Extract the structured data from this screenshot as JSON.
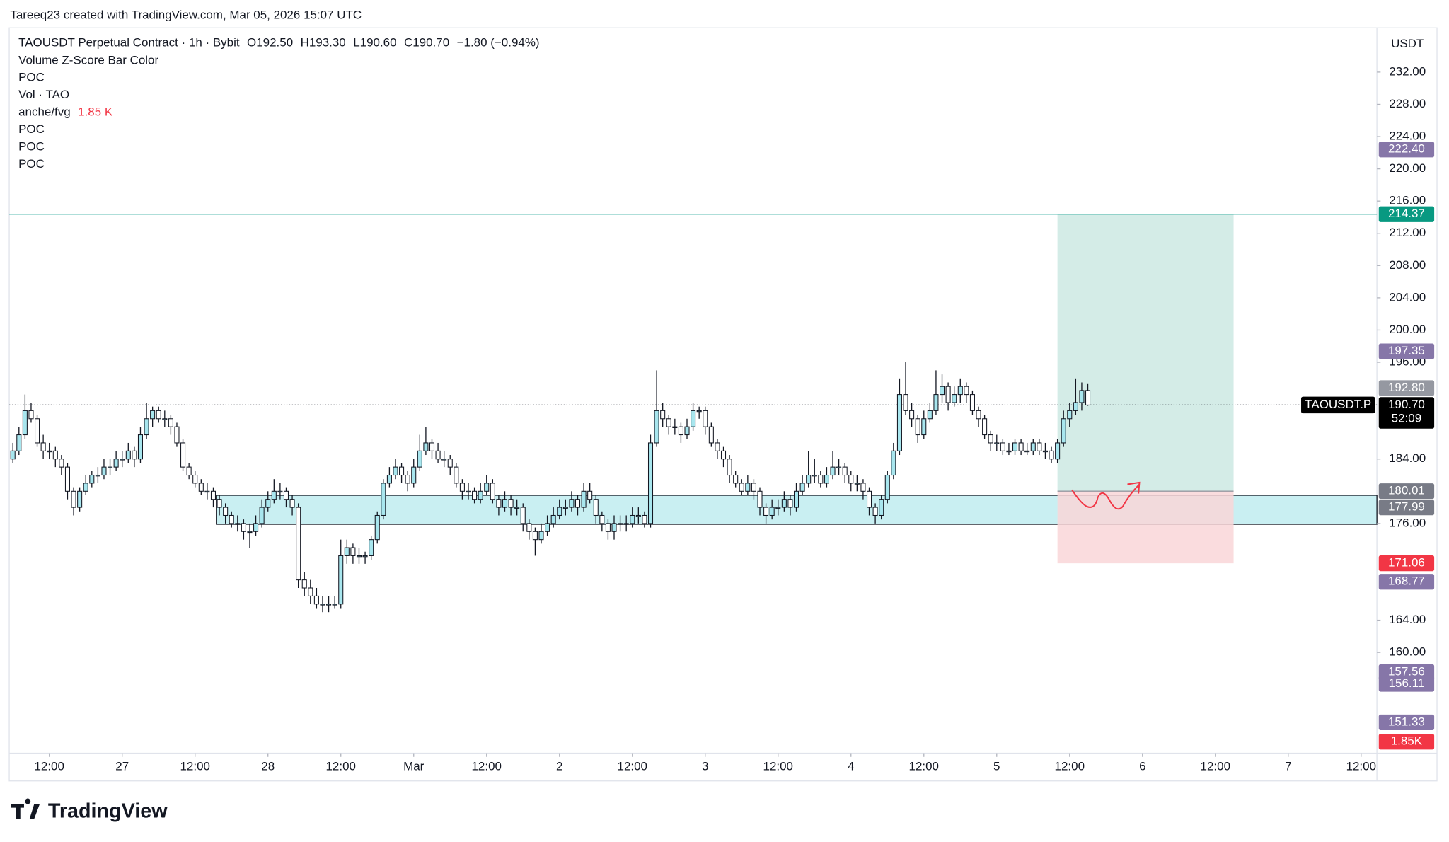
{
  "header": "Tareeq23 created with TradingView.com, Mar 05, 2026 15:07 UTC",
  "footer_logo": "TradingView",
  "chart_data": {
    "type": "candlestick",
    "legend": {
      "symbol": "TAOUSDT Perpetual Contract · 1h · Bybit",
      "ohlc_text": [
        "O192.50",
        "H193.30",
        "L190.60",
        "C190.70"
      ],
      "change": "−1.80 (−0.94%)",
      "indicators": [
        "Volume Z-Score Bar Color",
        "POC",
        "Vol · TAO",
        "anche/fvg",
        "POC",
        "POC",
        "POC"
      ],
      "volume_value": "1.85 K"
    },
    "currency": "USDT",
    "ohlc": [
      [
        184,
        186,
        183.5,
        185
      ],
      [
        185,
        188,
        184.5,
        187
      ],
      [
        187,
        192,
        186.5,
        190
      ],
      [
        190,
        191,
        188.5,
        189
      ],
      [
        189,
        189.5,
        185.5,
        186
      ],
      [
        186,
        187,
        184,
        185
      ],
      [
        185,
        186,
        184,
        185
      ],
      [
        185,
        185.5,
        183,
        184
      ],
      [
        184,
        184.5,
        182,
        183
      ],
      [
        183,
        183.5,
        179,
        180
      ],
      [
        180,
        180.5,
        177,
        178
      ],
      [
        178,
        180.5,
        177.5,
        180
      ],
      [
        180,
        182,
        179.5,
        181
      ],
      [
        181,
        182.5,
        180.5,
        182
      ],
      [
        182,
        183,
        181,
        182
      ],
      [
        182,
        184,
        181.5,
        183
      ],
      [
        183,
        184,
        182,
        183
      ],
      [
        183,
        185,
        182.5,
        184
      ],
      [
        184,
        185,
        183,
        184
      ],
      [
        184,
        186,
        183.5,
        185
      ],
      [
        185,
        185.5,
        183,
        184
      ],
      [
        184,
        188,
        183.5,
        187
      ],
      [
        187,
        191,
        186.5,
        189
      ],
      [
        189,
        190.5,
        188,
        190
      ],
      [
        190,
        190.5,
        188.5,
        189
      ],
      [
        189,
        190,
        188,
        189
      ],
      [
        189,
        189.5,
        187,
        188
      ],
      [
        188,
        188.5,
        185.5,
        186
      ],
      [
        186,
        186.5,
        182.5,
        183
      ],
      [
        183,
        183.5,
        181.5,
        182
      ],
      [
        182,
        182.5,
        180.5,
        181
      ],
      [
        181,
        181.5,
        179.5,
        180
      ],
      [
        180,
        181,
        179,
        180
      ],
      [
        180,
        180.5,
        178,
        179
      ],
      [
        179,
        179.5,
        177,
        178
      ],
      [
        178,
        178.5,
        176,
        177
      ],
      [
        177,
        177.5,
        175.5,
        176
      ],
      [
        176,
        177,
        175,
        176
      ],
      [
        176,
        176.5,
        174,
        175
      ],
      [
        175,
        176,
        173,
        175
      ],
      [
        175,
        177,
        174.5,
        176
      ],
      [
        176,
        179,
        175.5,
        178
      ],
      [
        178,
        180,
        177.5,
        179
      ],
      [
        179,
        181.5,
        178.5,
        180
      ],
      [
        180,
        181,
        179,
        180
      ],
      [
        180,
        180.5,
        178,
        179
      ],
      [
        179,
        179.5,
        177,
        178
      ],
      [
        178,
        178.5,
        168,
        169
      ],
      [
        169,
        170,
        167,
        168
      ],
      [
        168,
        169,
        166,
        167
      ],
      [
        167,
        168,
        165.5,
        166
      ],
      [
        166,
        167,
        165,
        166
      ],
      [
        166,
        167,
        165,
        166
      ],
      [
        166,
        167,
        165.5,
        166
      ],
      [
        166,
        174,
        165.5,
        172
      ],
      [
        172,
        174,
        171,
        173
      ],
      [
        173,
        173.5,
        171,
        172
      ],
      [
        172,
        173,
        171,
        172
      ],
      [
        172,
        172.5,
        171,
        172
      ],
      [
        172,
        174.5,
        171.5,
        174
      ],
      [
        174,
        177.5,
        173.5,
        177
      ],
      [
        177,
        181.5,
        176.5,
        181
      ],
      [
        181,
        183,
        180.5,
        182
      ],
      [
        182,
        184,
        181.5,
        183
      ],
      [
        183,
        183.5,
        181,
        182
      ],
      [
        182,
        182.5,
        180,
        181
      ],
      [
        181,
        184,
        180.5,
        183
      ],
      [
        183,
        187,
        182.5,
        185
      ],
      [
        185,
        188,
        184.5,
        186
      ],
      [
        186,
        186.5,
        184,
        185
      ],
      [
        185,
        186,
        183.5,
        184
      ],
      [
        184,
        185,
        183,
        184
      ],
      [
        184,
        184.5,
        182,
        183
      ],
      [
        183,
        183.5,
        180.5,
        181
      ],
      [
        181,
        181.5,
        179,
        180
      ],
      [
        180,
        181,
        179,
        180
      ],
      [
        180,
        180.5,
        178.5,
        179
      ],
      [
        179,
        181,
        178.5,
        180
      ],
      [
        180,
        182,
        179.5,
        181
      ],
      [
        181,
        181.5,
        178.5,
        179
      ],
      [
        179,
        179.5,
        177,
        178
      ],
      [
        178,
        180,
        177.5,
        179
      ],
      [
        179,
        179.5,
        177,
        178
      ],
      [
        178,
        179,
        177,
        178
      ],
      [
        178,
        178.5,
        175,
        176
      ],
      [
        176,
        176.5,
        174,
        175
      ],
      [
        175,
        175.5,
        172,
        174
      ],
      [
        174,
        176,
        173.5,
        175
      ],
      [
        175,
        177,
        174.5,
        176
      ],
      [
        176,
        178,
        175.5,
        177
      ],
      [
        177,
        179,
        176.5,
        178
      ],
      [
        178,
        179,
        177,
        178
      ],
      [
        178,
        180,
        177.5,
        179
      ],
      [
        179,
        179.5,
        177,
        178
      ],
      [
        178,
        181,
        177.5,
        180
      ],
      [
        180,
        181,
        178.5,
        179
      ],
      [
        179,
        179.5,
        176,
        177
      ],
      [
        177,
        177.5,
        175,
        176
      ],
      [
        176,
        176.5,
        174,
        175
      ],
      [
        175,
        177,
        174,
        176
      ],
      [
        176,
        177,
        175,
        176
      ],
      [
        176,
        177,
        175,
        176
      ],
      [
        176,
        178,
        175.5,
        177
      ],
      [
        177,
        178,
        176,
        177
      ],
      [
        177,
        177.5,
        175.5,
        176
      ],
      [
        176,
        187,
        175.5,
        186
      ],
      [
        186,
        195,
        185.5,
        190
      ],
      [
        190,
        191,
        188,
        189
      ],
      [
        189,
        189.5,
        187,
        188
      ],
      [
        188,
        189,
        187,
        188
      ],
      [
        188,
        188.5,
        186,
        187
      ],
      [
        187,
        189,
        186.5,
        188
      ],
      [
        188,
        191,
        187.5,
        190
      ],
      [
        190,
        190.5,
        189,
        190
      ],
      [
        190,
        190.5,
        187,
        188
      ],
      [
        188,
        188.5,
        185.5,
        186
      ],
      [
        186,
        186.5,
        184,
        185
      ],
      [
        185,
        185.5,
        183,
        184
      ],
      [
        184,
        184.5,
        181,
        182
      ],
      [
        182,
        182.5,
        180.5,
        181
      ],
      [
        181,
        181.5,
        179.5,
        180
      ],
      [
        180,
        182,
        179.5,
        181
      ],
      [
        181,
        181.5,
        179,
        180
      ],
      [
        180,
        180.5,
        177,
        178
      ],
      [
        178,
        178.5,
        176,
        177
      ],
      [
        177,
        179,
        176.5,
        178
      ],
      [
        178,
        179,
        177,
        178
      ],
      [
        178,
        180,
        177.5,
        179
      ],
      [
        179,
        179.5,
        177,
        178
      ],
      [
        178,
        181,
        177.5,
        180
      ],
      [
        180,
        182,
        179.5,
        181
      ],
      [
        181,
        185,
        180.5,
        182
      ],
      [
        182,
        184,
        181,
        182
      ],
      [
        182,
        182.5,
        180.5,
        181
      ],
      [
        181,
        183,
        180.5,
        182
      ],
      [
        182,
        185,
        181.5,
        183
      ],
      [
        183,
        184,
        182,
        183
      ],
      [
        183,
        183.5,
        181,
        182
      ],
      [
        182,
        182.5,
        180,
        181
      ],
      [
        181,
        182,
        180,
        181
      ],
      [
        181,
        181.5,
        179,
        180
      ],
      [
        180,
        180.5,
        177,
        178
      ],
      [
        178,
        178.5,
        176,
        177
      ],
      [
        177,
        179.5,
        176.5,
        179
      ],
      [
        179,
        182.5,
        178.5,
        182
      ],
      [
        182,
        186,
        181.5,
        185
      ],
      [
        185,
        194,
        184.5,
        192
      ],
      [
        192,
        196,
        189.5,
        190
      ],
      [
        190,
        191,
        188,
        189
      ],
      [
        189,
        189.5,
        186,
        187
      ],
      [
        187,
        190,
        186.5,
        189
      ],
      [
        189,
        191,
        188.5,
        190
      ],
      [
        190,
        195,
        189.5,
        192
      ],
      [
        192,
        194.5,
        191,
        193
      ],
      [
        193,
        193.5,
        190,
        191
      ],
      [
        191,
        193,
        190.5,
        192
      ],
      [
        192,
        194,
        191,
        193
      ],
      [
        193,
        193.5,
        191,
        192
      ],
      [
        192,
        192.5,
        189.5,
        190
      ],
      [
        190,
        190.5,
        188,
        189
      ],
      [
        189,
        189.5,
        186.5,
        187
      ],
      [
        187,
        187.5,
        185,
        186
      ],
      [
        186,
        187,
        185,
        186
      ],
      [
        186,
        186.5,
        184.5,
        185
      ],
      [
        185,
        186,
        184.5,
        185
      ],
      [
        185,
        186.5,
        184.5,
        186
      ],
      [
        186,
        186.5,
        184.5,
        185
      ],
      [
        185,
        186,
        184.5,
        185
      ],
      [
        185,
        186.5,
        184.5,
        186
      ],
      [
        186,
        186.5,
        184.5,
        185
      ],
      [
        185,
        186,
        184,
        185
      ],
      [
        185,
        185.5,
        183.5,
        184
      ],
      [
        184,
        186.5,
        183.5,
        186
      ],
      [
        186,
        190,
        185.5,
        189
      ],
      [
        189,
        191,
        188,
        190
      ],
      [
        190,
        194,
        189.5,
        191
      ],
      [
        191,
        193.5,
        190,
        192.5
      ],
      [
        192.5,
        193.3,
        190.6,
        190.7
      ]
    ],
    "up_color": "#a8e6ee",
    "down_color": "#ffffff",
    "wick_color": "#131722",
    "xlim": [
      -0.6,
      224.6
    ],
    "xticks": [
      {
        "value": 6,
        "label": "12:00"
      },
      {
        "value": 18,
        "label": "27"
      },
      {
        "value": 30,
        "label": "12:00"
      },
      {
        "value": 42,
        "label": "28"
      },
      {
        "value": 54,
        "label": "12:00"
      },
      {
        "value": 66,
        "label": "Mar"
      },
      {
        "value": 78,
        "label": "12:00"
      },
      {
        "value": 90,
        "label": "2"
      },
      {
        "value": 102,
        "label": "12:00"
      },
      {
        "value": 114,
        "label": "3"
      },
      {
        "value": 126,
        "label": "12:00"
      },
      {
        "value": 138,
        "label": "4"
      },
      {
        "value": 150,
        "label": "12:00"
      },
      {
        "value": 162,
        "label": "5"
      },
      {
        "value": 174,
        "label": "12:00"
      },
      {
        "value": 186,
        "label": "6"
      },
      {
        "value": 198,
        "label": "12:00"
      },
      {
        "value": 210,
        "label": "7"
      },
      {
        "value": 222,
        "label": "12:00"
      }
    ],
    "ylim": [
      147.5,
      237.5
    ],
    "yticks": [
      {
        "value": 232,
        "label": "232.00"
      },
      {
        "value": 228,
        "label": "228.00"
      },
      {
        "value": 224,
        "label": "224.00"
      },
      {
        "value": 220,
        "label": "220.00"
      },
      {
        "value": 216,
        "label": "216.00"
      },
      {
        "value": 212,
        "label": "212.00"
      },
      {
        "value": 208,
        "label": "208.00"
      },
      {
        "value": 204,
        "label": "204.00"
      },
      {
        "value": 200,
        "label": "200.00"
      },
      {
        "value": 196,
        "label": "196.00"
      },
      {
        "value": 184,
        "label": "184.00"
      },
      {
        "value": 176,
        "label": "176.00"
      },
      {
        "value": 164,
        "label": "164.00"
      },
      {
        "value": 160,
        "label": "160.00"
      }
    ],
    "target_line": {
      "value": 214.37,
      "color": "#26a69a"
    },
    "position": {
      "x": [
        172,
        201
      ],
      "target": 214.37,
      "entry": 180.01,
      "stop": 171.06,
      "profit_color": "#cfeae4",
      "loss_color": "#f9d6d8"
    },
    "zone": {
      "x": [
        33.5,
        224.6
      ],
      "top": 179.5,
      "bottom": 175.9,
      "color": "#c9eff2"
    },
    "price_labels": [
      {
        "value": 222.4,
        "label": "222.40",
        "color": "#8676a8"
      },
      {
        "value": 214.37,
        "label": "214.37",
        "color": "#089981"
      },
      {
        "value": 197.35,
        "label": "197.35",
        "color": "#8676a8"
      },
      {
        "value": 192.8,
        "label": "192.80",
        "color": "#9598a1"
      },
      {
        "value": 180.01,
        "label": "180.01",
        "color": "#787b86"
      },
      {
        "value": 177.99,
        "label": "177.99",
        "color": "#787b86"
      },
      {
        "value": 171.06,
        "label": "171.06",
        "color": "#f23645"
      },
      {
        "value": 168.77,
        "label": "168.77",
        "color": "#8676a8"
      },
      {
        "value": 157.56,
        "label": "157.56",
        "color": "#8676a8"
      },
      {
        "value": 156.11,
        "label": "156.11",
        "color": "#8676a8"
      },
      {
        "value": 151.33,
        "label": "151.33",
        "color": "#8676a8"
      }
    ],
    "last_price": {
      "value": 190.7,
      "label": "190.70",
      "countdown": "52:09",
      "symbol_tag": "TAOUSDT.P",
      "color": "#000000"
    },
    "volume_badge": {
      "value": 1850,
      "label": "1.85K",
      "color": "#f23645"
    }
  }
}
